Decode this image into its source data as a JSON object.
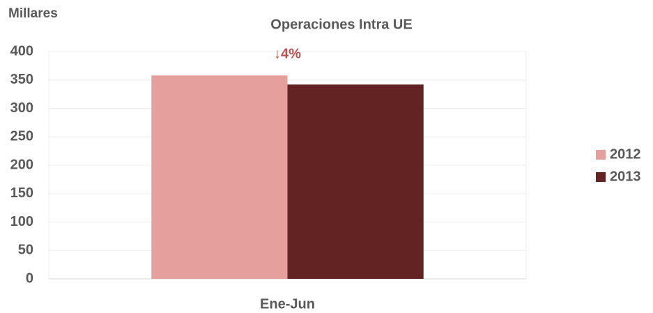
{
  "chart_data": {
    "type": "bar",
    "title": "Operaciones Intra UE",
    "y_axis_label": "Millares",
    "annotation": "↓4%",
    "categories": [
      "Ene-Jun"
    ],
    "series": [
      {
        "name": "2012",
        "color": "#e6a09c",
        "values": [
          358
        ]
      },
      {
        "name": "2013",
        "color": "#632322",
        "values": [
          342
        ]
      }
    ],
    "ylim": [
      0,
      400
    ],
    "yticks": [
      0,
      50,
      100,
      150,
      200,
      250,
      300,
      350,
      400
    ],
    "grid": true,
    "legend": "right"
  }
}
